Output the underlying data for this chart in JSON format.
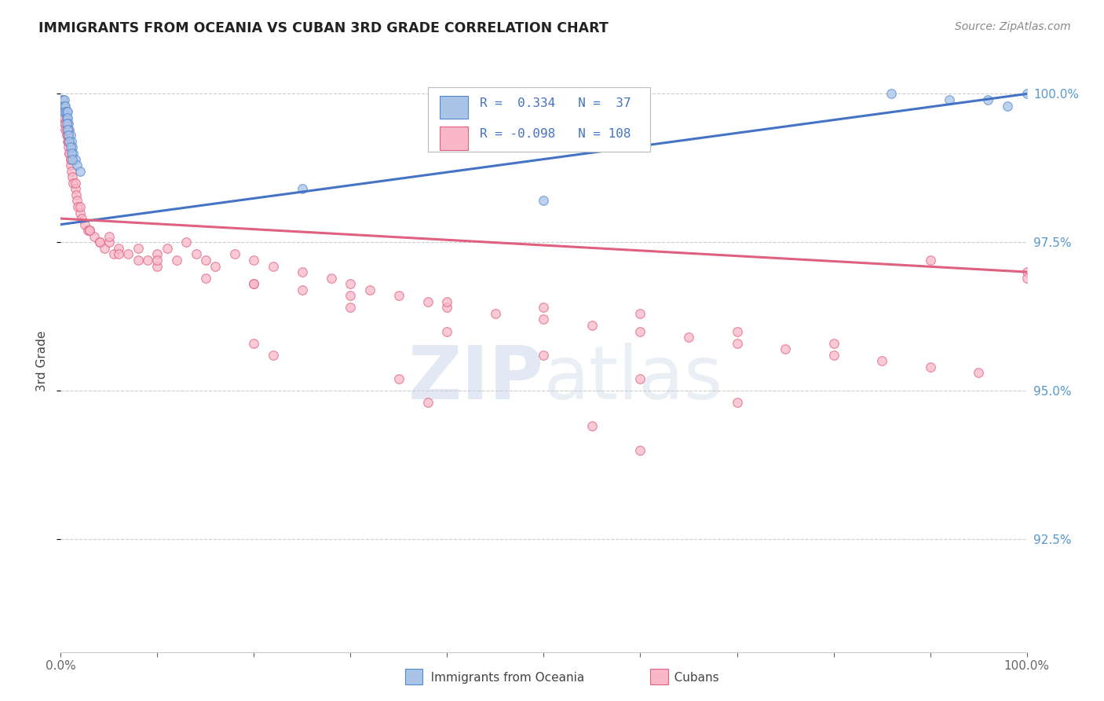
{
  "title": "IMMIGRANTS FROM OCEANIA VS CUBAN 3RD GRADE CORRELATION CHART",
  "source": "Source: ZipAtlas.com",
  "ylabel": "3rd Grade",
  "color_oceania_fill": "#aac4e8",
  "color_oceania_edge": "#5588cc",
  "color_cuban_fill": "#f8b8c8",
  "color_cuban_edge": "#e06080",
  "color_line_oceania": "#4472c4",
  "color_line_cuban": "#e06080",
  "legend_text_color": "#4472c4",
  "ytick_color": "#5599cc",
  "xrange": [
    0.0,
    1.0
  ],
  "yrange": [
    0.906,
    1.004
  ],
  "oceania_x": [
    0.001,
    0.001,
    0.002,
    0.002,
    0.003,
    0.003,
    0.004,
    0.004,
    0.005,
    0.005,
    0.006,
    0.006,
    0.007,
    0.007,
    0.008,
    0.009,
    0.01,
    0.011,
    0.012,
    0.013,
    0.015,
    0.017,
    0.02,
    0.006,
    0.007,
    0.008,
    0.009,
    0.01,
    0.011,
    0.012,
    0.5,
    0.86,
    0.92,
    0.96,
    0.98,
    1.0,
    0.25
  ],
  "oceania_y": [
    0.999,
    0.998,
    0.999,
    0.998,
    0.998,
    0.997,
    0.999,
    0.998,
    0.998,
    0.997,
    0.997,
    0.996,
    0.997,
    0.996,
    0.995,
    0.994,
    0.993,
    0.992,
    0.991,
    0.99,
    0.989,
    0.988,
    0.987,
    0.995,
    0.994,
    0.993,
    0.992,
    0.991,
    0.99,
    0.989,
    0.982,
    1.0,
    0.999,
    0.999,
    0.998,
    1.0,
    0.984
  ],
  "cuban_x": [
    0.002,
    0.003,
    0.003,
    0.004,
    0.004,
    0.005,
    0.005,
    0.006,
    0.006,
    0.007,
    0.007,
    0.008,
    0.008,
    0.009,
    0.01,
    0.01,
    0.011,
    0.012,
    0.013,
    0.015,
    0.016,
    0.017,
    0.018,
    0.02,
    0.022,
    0.025,
    0.028,
    0.03,
    0.035,
    0.04,
    0.045,
    0.05,
    0.055,
    0.06,
    0.07,
    0.08,
    0.09,
    0.1,
    0.11,
    0.12,
    0.13,
    0.14,
    0.15,
    0.16,
    0.18,
    0.2,
    0.22,
    0.25,
    0.28,
    0.3,
    0.32,
    0.35,
    0.38,
    0.4,
    0.45,
    0.5,
    0.55,
    0.6,
    0.65,
    0.7,
    0.75,
    0.8,
    0.85,
    0.9,
    0.95,
    1.0,
    0.003,
    0.004,
    0.005,
    0.006,
    0.007,
    0.008,
    0.009,
    0.01,
    0.015,
    0.02,
    0.03,
    0.04,
    0.06,
    0.08,
    0.1,
    0.15,
    0.2,
    0.25,
    0.3,
    0.4,
    0.5,
    0.6,
    0.7,
    0.8,
    0.9,
    1.0,
    0.05,
    0.1,
    0.2,
    0.3,
    0.4,
    0.5,
    0.6,
    0.7,
    0.2,
    0.22,
    0.35,
    0.38,
    0.55,
    0.6
  ],
  "cuban_y": [
    0.999,
    0.997,
    0.996,
    0.998,
    0.995,
    0.997,
    0.994,
    0.996,
    0.993,
    0.995,
    0.992,
    0.994,
    0.991,
    0.99,
    0.989,
    0.988,
    0.987,
    0.986,
    0.985,
    0.984,
    0.983,
    0.982,
    0.981,
    0.98,
    0.979,
    0.978,
    0.977,
    0.977,
    0.976,
    0.975,
    0.974,
    0.975,
    0.973,
    0.974,
    0.973,
    0.974,
    0.972,
    0.973,
    0.974,
    0.972,
    0.975,
    0.973,
    0.972,
    0.971,
    0.973,
    0.972,
    0.971,
    0.97,
    0.969,
    0.968,
    0.967,
    0.966,
    0.965,
    0.964,
    0.963,
    0.962,
    0.961,
    0.96,
    0.959,
    0.958,
    0.957,
    0.956,
    0.955,
    0.954,
    0.953,
    0.97,
    0.998,
    0.996,
    0.995,
    0.994,
    0.993,
    0.992,
    0.99,
    0.989,
    0.985,
    0.981,
    0.977,
    0.975,
    0.973,
    0.972,
    0.971,
    0.969,
    0.968,
    0.967,
    0.966,
    0.965,
    0.964,
    0.963,
    0.96,
    0.958,
    0.972,
    0.969,
    0.976,
    0.972,
    0.968,
    0.964,
    0.96,
    0.956,
    0.952,
    0.948,
    0.958,
    0.956,
    0.952,
    0.948,
    0.944,
    0.94
  ],
  "line_oceania_x0": 0.0,
  "line_oceania_y0": 0.978,
  "line_oceania_x1": 1.0,
  "line_oceania_y1": 1.0,
  "line_cuban_x0": 0.0,
  "line_cuban_y0": 0.979,
  "line_cuban_x1": 1.0,
  "line_cuban_y1": 0.97
}
